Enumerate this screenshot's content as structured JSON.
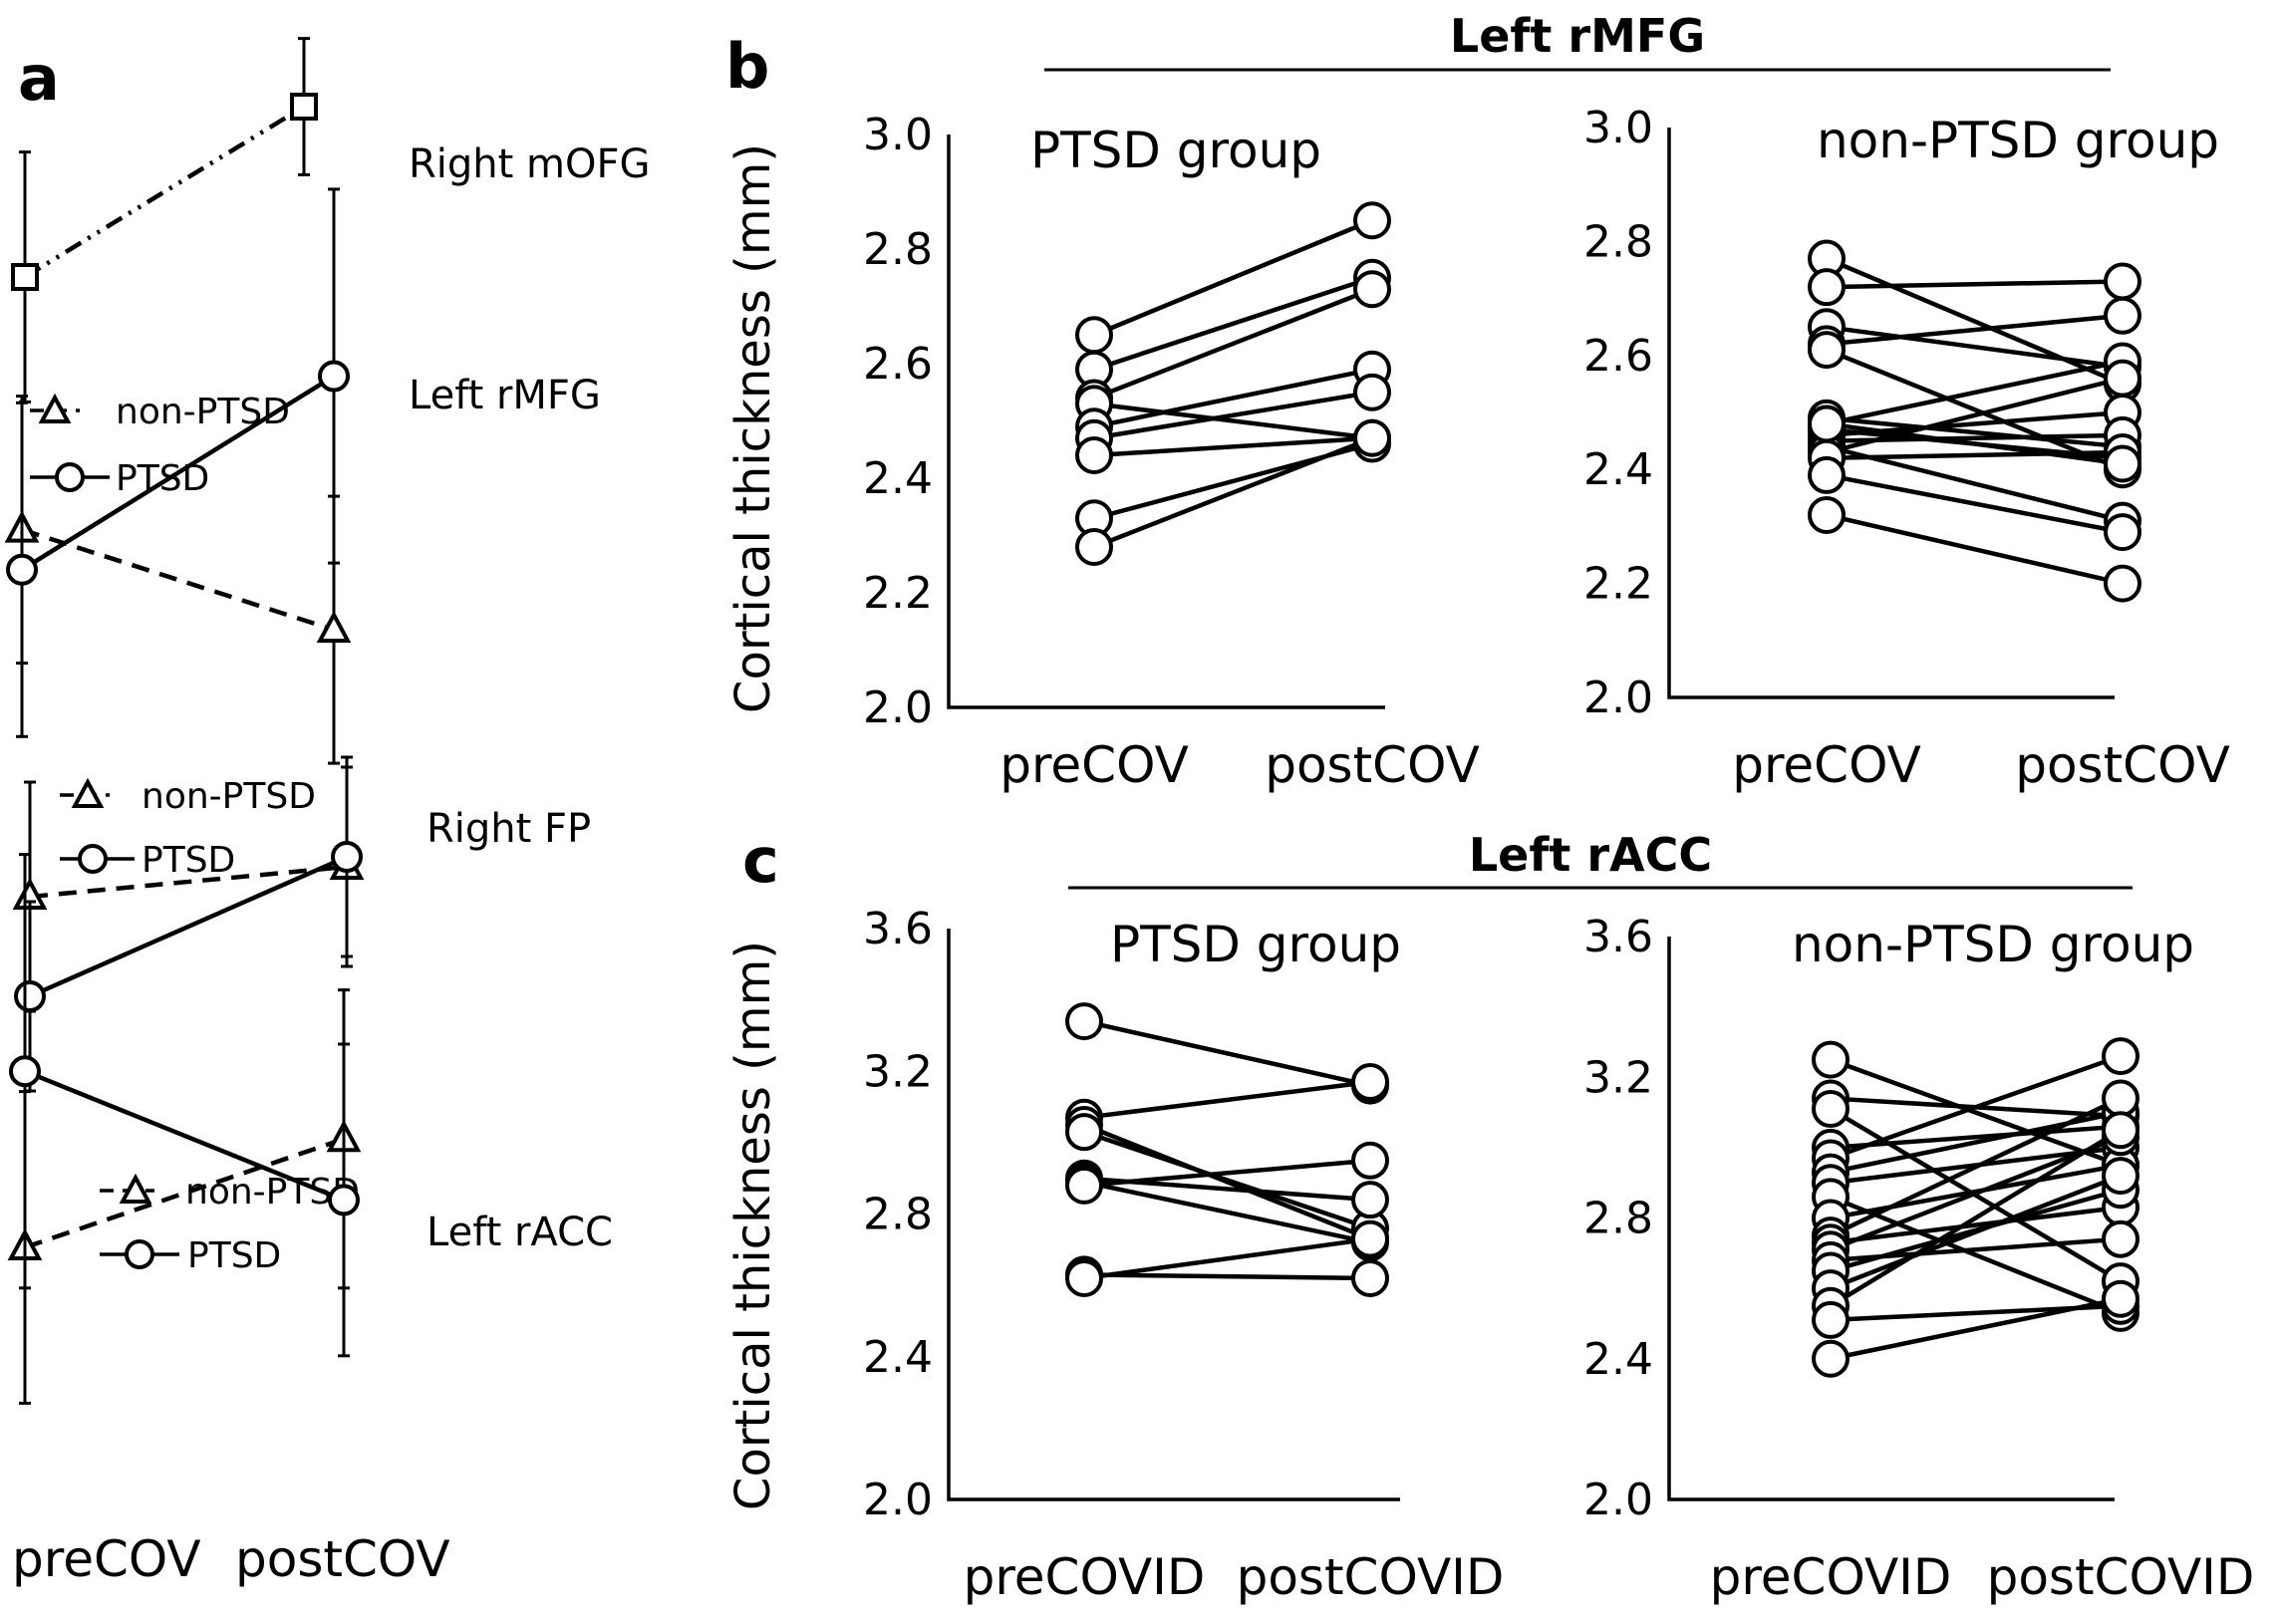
{
  "panels": {
    "a": "a",
    "b": "b",
    "c": "c"
  },
  "legend": {
    "non_ptsd": "non-PTSD",
    "ptsd": "PTSD"
  },
  "chart_data": [
    {
      "id": "a",
      "type": "line",
      "xlabel": "",
      "ylabel": "",
      "categories": [
        "preCOV",
        "postCOV"
      ],
      "subplots": [
        {
          "region": "Right mOFG",
          "series": [
            {
              "name": "",
              "marker": "square",
              "line": "dash-dot",
              "values": [
                2.4,
                2.85
              ],
              "err": [
                0.33,
                0.18
              ]
            }
          ]
        },
        {
          "region": "Left rMFG",
          "series": [
            {
              "name": "non-PTSD",
              "marker": "triangle",
              "line": "dashed",
              "values": [
                2.52,
                2.37
              ],
              "err": [
                0.2,
                0.2
              ]
            },
            {
              "name": "PTSD",
              "marker": "circle",
              "line": "solid",
              "values": [
                2.46,
                2.75
              ],
              "err": [
                0.25,
                0.28
              ]
            }
          ]
        },
        {
          "region": "Right FP",
          "series": [
            {
              "name": "non-PTSD",
              "marker": "triangle",
              "line": "dashed",
              "values": [
                2.6,
                2.66
              ],
              "err": [
                0.23,
                0.2
              ]
            },
            {
              "name": "PTSD",
              "marker": "circle",
              "line": "solid",
              "values": [
                2.4,
                2.68
              ],
              "err": [
                0.19,
                0.2
              ]
            }
          ]
        },
        {
          "region": "Left rACC",
          "series": [
            {
              "name": "non-PTSD",
              "marker": "triangle",
              "line": "dashed",
              "values": [
                2.6,
                2.76
              ],
              "err": [
                0.23,
                0.22
              ]
            },
            {
              "name": "PTSD",
              "marker": "circle",
              "line": "solid",
              "values": [
                2.86,
                2.67
              ],
              "err": [
                0.32,
                0.23
              ]
            }
          ]
        }
      ]
    },
    {
      "id": "b",
      "type": "line",
      "title": "Left rMFG",
      "ylabel": "Cortical thickness (mm)",
      "categories": [
        "preCOV",
        "postCOV"
      ],
      "ylim": [
        2.0,
        3.0
      ],
      "yticks": [
        "3.0",
        "2.8",
        "2.6",
        "2.4",
        "2.2",
        "2.0"
      ],
      "groups": [
        {
          "name": "PTSD group",
          "pairs": [
            [
              2.65,
              2.85
            ],
            [
              2.59,
              2.75
            ],
            [
              2.54,
              2.73
            ],
            [
              2.53,
              2.47
            ],
            [
              2.49,
              2.59
            ],
            [
              2.47,
              2.55
            ],
            [
              2.44,
              2.47
            ],
            [
              2.33,
              2.46
            ],
            [
              2.28,
              2.47
            ]
          ]
        },
        {
          "name": "non-PTSD group",
          "pairs": [
            [
              2.77,
              2.55
            ],
            [
              2.72,
              2.73
            ],
            [
              2.65,
              2.58
            ],
            [
              2.62,
              2.67
            ],
            [
              2.61,
              2.4
            ],
            [
              2.49,
              2.44
            ],
            [
              2.48,
              2.59
            ],
            [
              2.47,
              2.42
            ],
            [
              2.46,
              2.5
            ],
            [
              2.45,
              2.46
            ],
            [
              2.44,
              2.31
            ],
            [
              2.43,
              2.56
            ],
            [
              2.42,
              2.43
            ],
            [
              2.39,
              2.29
            ],
            [
              2.32,
              2.2
            ],
            [
              2.48,
              2.41
            ]
          ]
        }
      ]
    },
    {
      "id": "c",
      "type": "line",
      "title": "Left rACC",
      "ylabel": "Cortical thickness (mm)",
      "categories": [
        "preCOVID",
        "postCOVID"
      ],
      "ylim": [
        2.0,
        3.6
      ],
      "yticks": [
        "3.6",
        "3.2",
        "2.8",
        "2.4",
        "2.0"
      ],
      "groups": [
        {
          "name": "PTSD group",
          "pairs": [
            [
              3.34,
              3.16
            ],
            [
              3.07,
              3.17
            ],
            [
              3.05,
              2.73
            ],
            [
              3.03,
              2.76
            ],
            [
              2.9,
              2.84
            ],
            [
              2.89,
              2.72
            ],
            [
              2.88,
              2.95
            ],
            [
              2.63,
              2.62
            ],
            [
              2.62,
              2.73
            ]
          ]
        },
        {
          "name": "non-PTSD group",
          "pairs": [
            [
              3.25,
              2.95
            ],
            [
              3.14,
              3.09
            ],
            [
              3.11,
              2.62
            ],
            [
              3.0,
              3.06
            ],
            [
              2.97,
              3.26
            ],
            [
              2.93,
              3.1
            ],
            [
              2.9,
              3.0
            ],
            [
              2.86,
              2.53
            ],
            [
              2.8,
              2.95
            ],
            [
              2.75,
              3.14
            ],
            [
              2.73,
              2.83
            ],
            [
              2.71,
              3.03
            ],
            [
              2.68,
              2.74
            ],
            [
              2.65,
              2.88
            ],
            [
              2.6,
              2.92
            ],
            [
              2.55,
              3.05
            ],
            [
              2.51,
              2.55
            ],
            [
              2.4,
              2.57
            ]
          ]
        }
      ]
    }
  ]
}
